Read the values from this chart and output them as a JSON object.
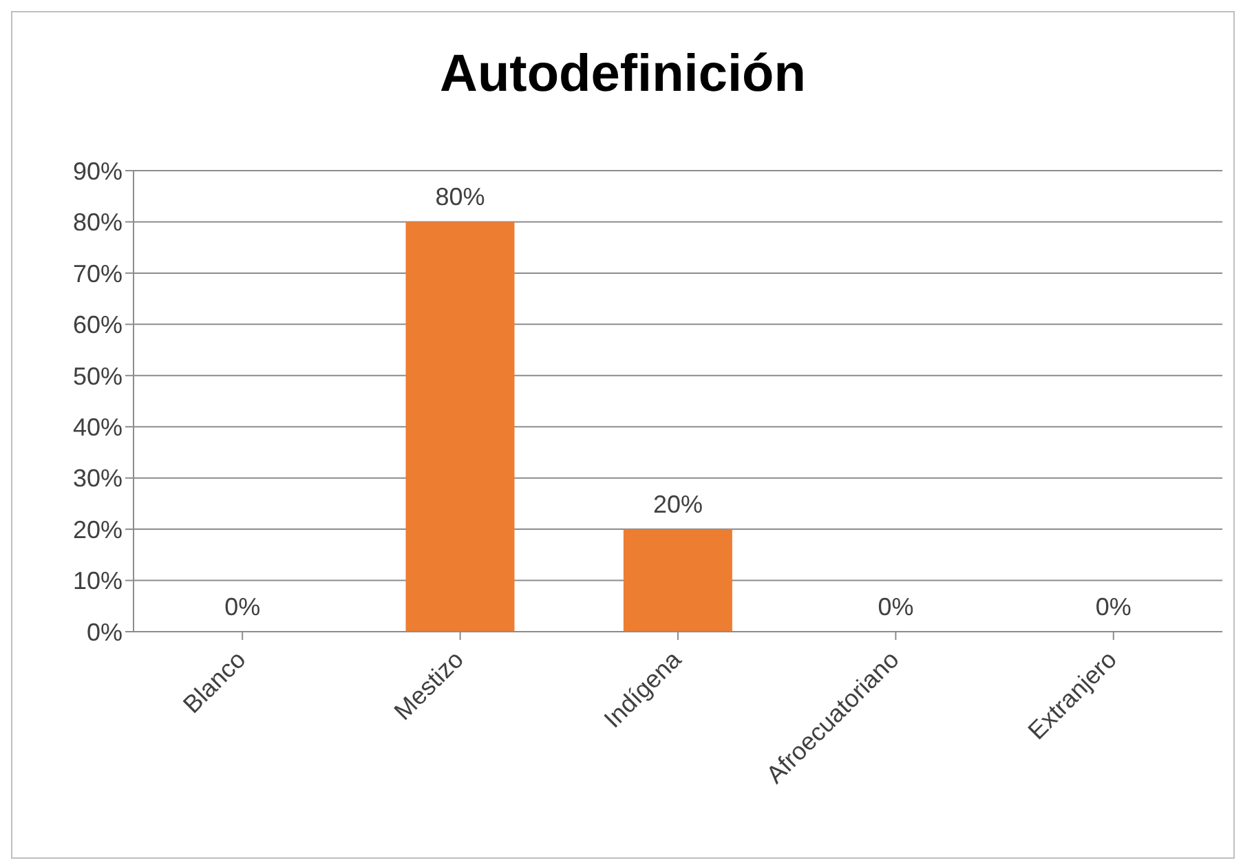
{
  "chart_data": {
    "type": "bar",
    "title": "Autodefinición",
    "categories": [
      "Blanco",
      "Mestizo",
      "Indígena",
      "Afroecuatoriano",
      "Extranjero"
    ],
    "values": [
      0,
      80,
      20,
      0,
      0
    ],
    "color": "#ed7d31",
    "value_labels": [
      "0%",
      "80%",
      "20%",
      "0%",
      "0%"
    ],
    "ylim": [
      0,
      90
    ],
    "yticks": [
      {
        "value": 0,
        "label": "0%"
      },
      {
        "value": 10,
        "label": "10%"
      },
      {
        "value": 20,
        "label": "20%"
      },
      {
        "value": 30,
        "label": "30%"
      },
      {
        "value": 40,
        "label": "40%"
      },
      {
        "value": 50,
        "label": "50%"
      },
      {
        "value": 60,
        "label": "60%"
      },
      {
        "value": 70,
        "label": "70%"
      },
      {
        "value": 80,
        "label": "80%"
      },
      {
        "value": 90,
        "label": "90%"
      }
    ],
    "grid": "y",
    "legend": false
  }
}
